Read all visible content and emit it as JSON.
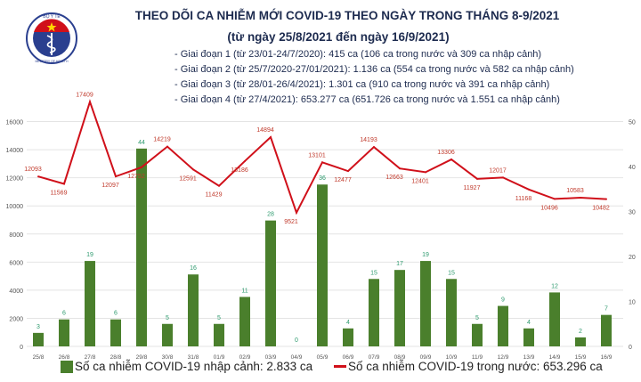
{
  "logo": {
    "top_text": "BỘ Y TẾ",
    "bottom_text": "MINISTRY OF HEALTH"
  },
  "header": {
    "title": "THEO DÕI CA NHIỄM MỚI COVID-19 THEO NGÀY TRONG THÁNG 8-9/2021",
    "subtitle": "(từ ngày 25/8/2021 đến ngày 16/9/2021)",
    "phases": [
      "- Giai đoạn 1 (từ 23/01-24/7/2020): 415 ca (106 ca trong nước và 309 ca nhập cảnh)",
      "- Giai đoạn 2 (từ 25/7/2020-27/01/2021): 1.136 ca (554 ca trong nước và 582 ca nhập cảnh)",
      "- Giai đoạn 3 (từ 28/01-26/4/2021): 1.301 ca (910 ca trong nước và 391 ca nhập cảnh)",
      "- Giai đoạn 4 (từ 27/4/2021): 653.277 ca (651.726 ca trong nước và 1.551 ca nhập cảnh)"
    ]
  },
  "chart_data": {
    "type": "bar+line",
    "categories": [
      "25/8",
      "26/8",
      "27/8",
      "28/8",
      "29/8",
      "30/8",
      "31/8",
      "01/9",
      "02/9",
      "03/9",
      "04/9",
      "05/9",
      "06/9",
      "07/9",
      "08/9",
      "09/9",
      "10/9",
      "11/9",
      "12/9",
      "13/9",
      "14/9",
      "15/9",
      "16/9"
    ],
    "series": [
      {
        "name": "Số ca nhiễm COVID-19 nhập cảnh: 2.833 ca",
        "type": "bar",
        "axis": "right",
        "color": "#4a7f2c",
        "values": [
          3,
          6,
          19,
          6,
          44,
          5,
          16,
          5,
          11,
          28,
          0,
          36,
          4,
          15,
          17,
          19,
          15,
          5,
          9,
          4,
          12,
          2,
          7
        ]
      },
      {
        "name": "Số ca nhiễm COVID-19 trong nước: 653.296 ca",
        "type": "line",
        "axis": "left",
        "color": "#d0101a",
        "values": [
          12093,
          11569,
          17409,
          12097,
          12752,
          14219,
          12591,
          11429,
          13186,
          14894,
          9521,
          13101,
          12477,
          14193,
          12663,
          12401,
          13306,
          11927,
          12017,
          11168,
          10496,
          10583,
          10482
        ]
      }
    ],
    "left_axis": {
      "range": [
        0,
        18000
      ],
      "ticks": [
        0,
        2000,
        4000,
        6000,
        8000,
        10000,
        12000,
        14000,
        16000
      ]
    },
    "right_axis": {
      "range": [
        0,
        56.25
      ],
      "ticks": [
        0,
        10,
        20,
        30,
        40,
        50
      ]
    },
    "grid": true,
    "legend": "bottom",
    "bar_label_color": "#2e9a6e",
    "line_label_color": "#c0392b"
  }
}
